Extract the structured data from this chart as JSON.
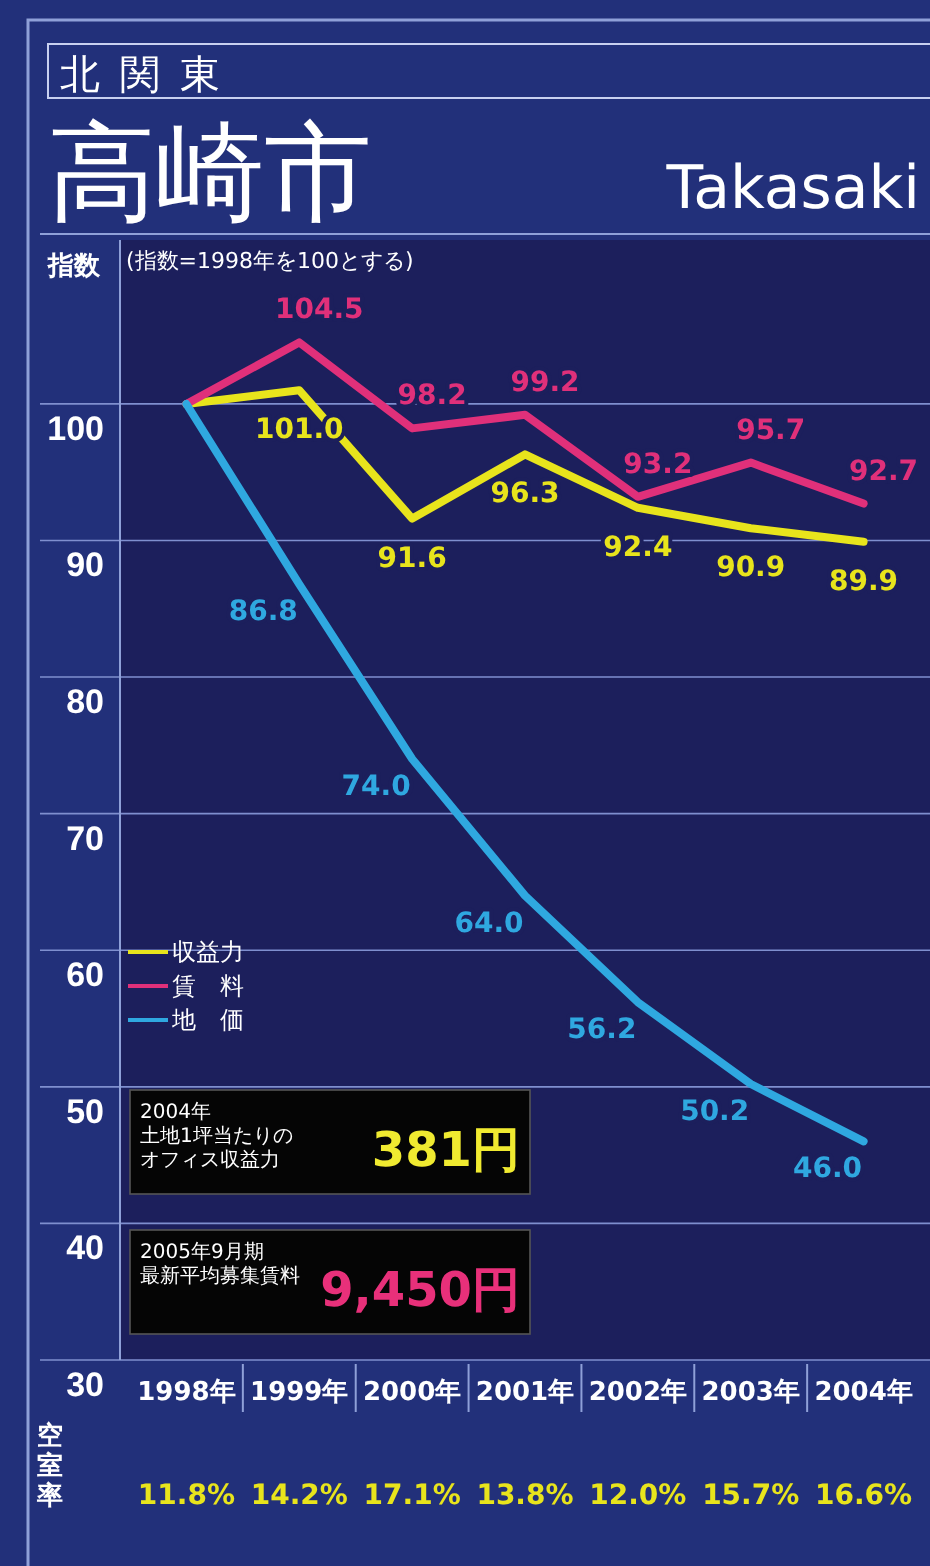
{
  "chart_data": {
    "type": "line",
    "title": "高崎市",
    "subtitle": "北関東",
    "ylabel": "指数",
    "categories": [
      "1998年",
      "1999年",
      "2000年",
      "2001年",
      "2002年",
      "2003年",
      "2004年"
    ],
    "series": [
      {
        "name": "収益力",
        "color": "#e8e41c",
        "values": [
          100,
          101.0,
          91.6,
          96.3,
          92.4,
          90.9,
          89.9
        ],
        "value_labels": [
          null,
          "101.0",
          "91.6",
          "96.3",
          "92.4",
          "90.9",
          "89.9"
        ]
      },
      {
        "name": "賃　料",
        "color": "#e0307a",
        "values": [
          100,
          104.5,
          98.2,
          99.2,
          93.2,
          95.7,
          92.7
        ],
        "value_labels": [
          null,
          "104.5",
          "98.2",
          "99.2",
          "93.2",
          "95.7",
          "92.7"
        ]
      },
      {
        "name": "地　価",
        "color": "#2fa8e0",
        "values": [
          100,
          86.8,
          74.0,
          64.0,
          56.2,
          50.2,
          46.0
        ],
        "value_labels": [
          null,
          "86.8",
          "74.0",
          "64.0",
          "56.2",
          "50.2",
          "46.0"
        ]
      }
    ],
    "ylim": [
      30,
      112
    ],
    "yticks": [
      30,
      40,
      50,
      60,
      70,
      80,
      90,
      100
    ],
    "grid": "y",
    "legend": "left",
    "annotations": [
      "Takasaki",
      "(指数=1998年を100とする)",
      "2004年",
      "土地1坪当たりの",
      "オフィス収益力",
      "381円",
      "2005年9月期",
      "最新平均募集賃料",
      "9,450円",
      "空室率",
      "11.8%",
      "14.2%",
      "17.1%",
      "13.8%",
      "12.0%",
      "15.7%",
      "16.6%"
    ]
  }
}
